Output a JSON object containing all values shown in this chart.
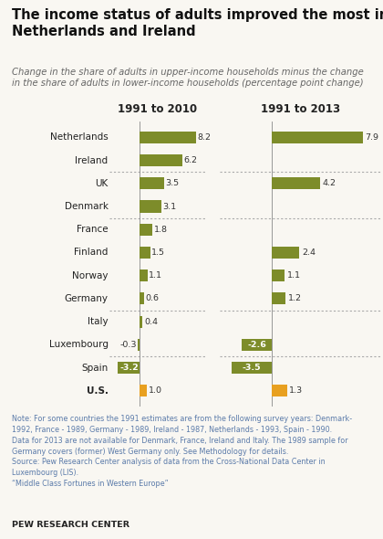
{
  "title": "The income status of adults improved the most in the\nNetherlands and Ireland",
  "subtitle": "Change in the share of adults in upper-income households minus the change\nin the share of adults in lower-income households (percentage point change)",
  "col1_header": "1991 to 2010",
  "col2_header": "1991 to 2013",
  "countries": [
    "Netherlands",
    "Ireland",
    "UK",
    "Denmark",
    "France",
    "Finland",
    "Norway",
    "Germany",
    "Italy",
    "Luxembourg",
    "Spain",
    "U.S."
  ],
  "values_2010": [
    8.2,
    6.2,
    3.5,
    3.1,
    1.8,
    1.5,
    1.1,
    0.6,
    0.4,
    -0.3,
    -3.2,
    1.0
  ],
  "values_2013": [
    7.9,
    null,
    4.2,
    null,
    null,
    2.4,
    1.1,
    1.2,
    null,
    -2.6,
    -3.5,
    1.3
  ],
  "us_color": "#E8A020",
  "bar_color": "#7D8C2A",
  "bg_color": "#f9f7f2",
  "note_text": "Note: For some countries the 1991 estimates are from the following survey years: Denmark-\n1992, France - 1989, Germany - 1989, Ireland - 1987, Netherlands - 1993, Spain - 1990.\nData for 2013 are not available for Denmark, France, Ireland and Italy. The 1989 sample for\nGermany covers (former) West Germany only. See Methodology for details.\nSource: Pew Research Center analysis of data from the Cross-National Data Center in\nLuxembourg (LIS).\n“Middle Class Fortunes in Western Europe”",
  "pew_label": "PEW RESEARCH CENTER",
  "note_color": "#5B7BAA",
  "max_val": 9.5,
  "min_val": -4.5,
  "dotted_after": [
    1,
    3,
    7,
    9
  ]
}
